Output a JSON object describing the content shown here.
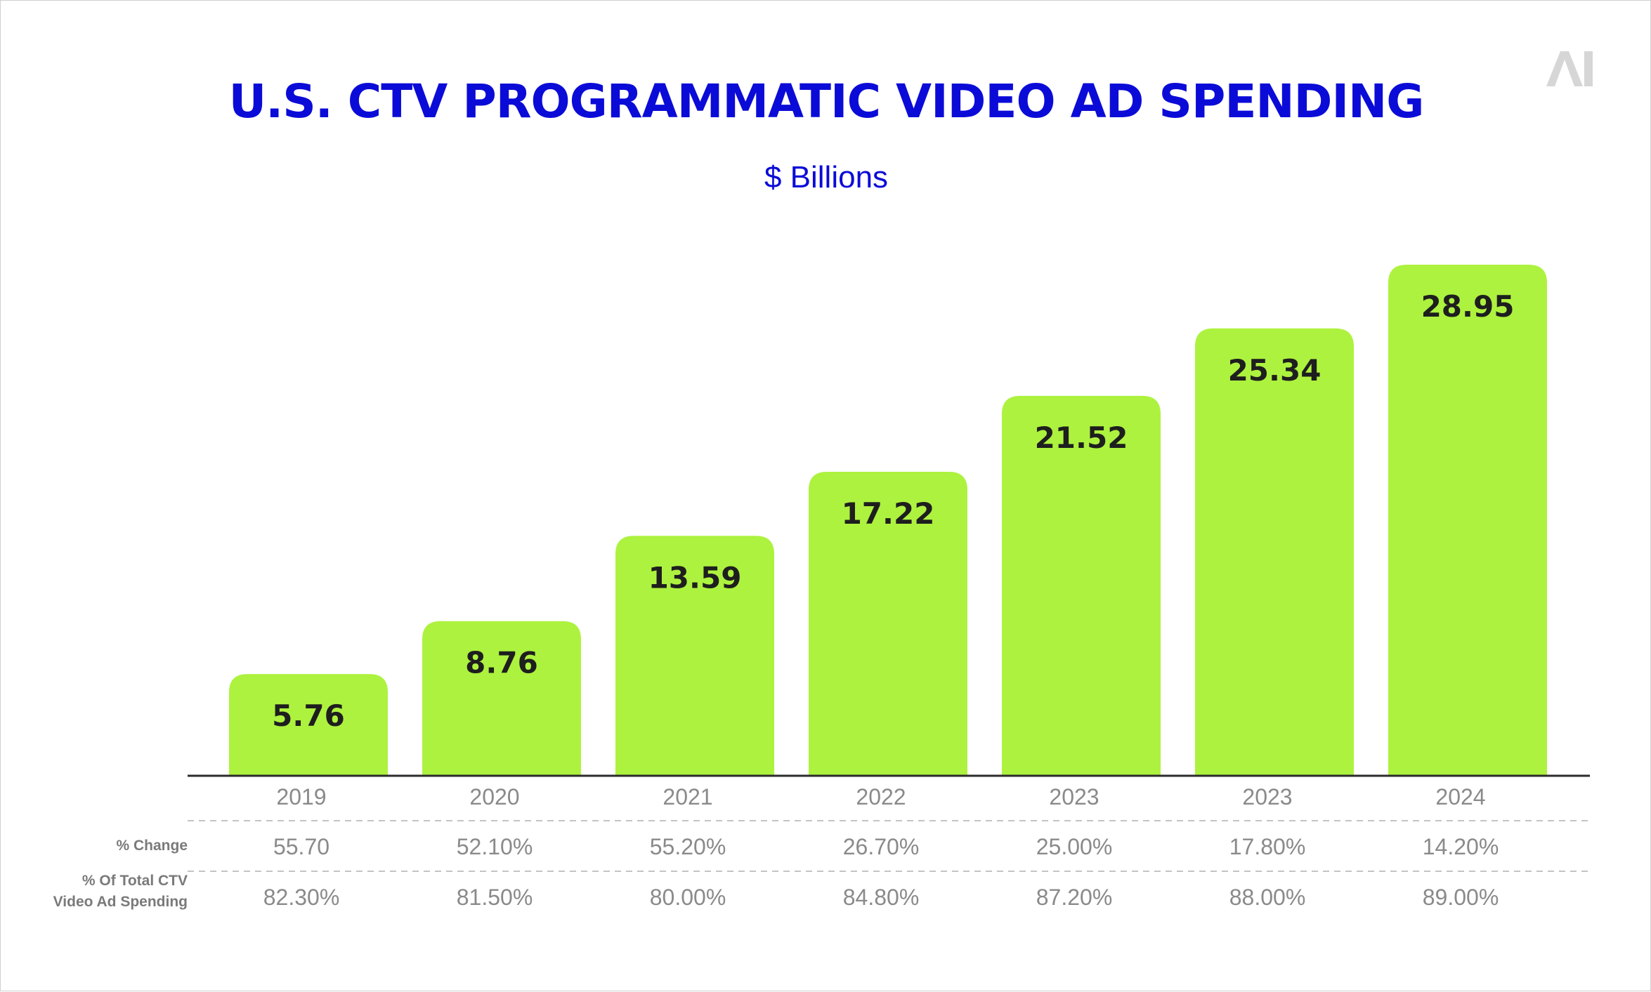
{
  "chart_data": {
    "type": "bar",
    "title": "U.S. CTV PROGRAMMATIC VIDEO AD SPENDING",
    "subtitle": "$ Billions",
    "xlabel": "",
    "ylabel": "",
    "ylim": [
      0,
      28.95
    ],
    "grid": false,
    "categories": [
      "2019",
      "2020",
      "2021",
      "2022",
      "2023",
      "2023",
      "2024"
    ],
    "values": [
      5.76,
      8.76,
      13.59,
      17.22,
      21.52,
      25.34,
      28.95
    ],
    "value_labels": [
      "5.76",
      "8.76",
      "13.59",
      "17.22",
      "21.52",
      "25.34",
      "28.95"
    ],
    "bar_color": "#adf23f",
    "title_color": "#0b0bd8",
    "table_rows": [
      {
        "header": [
          "% Change"
        ],
        "values": [
          "55.70",
          "52.10%",
          "55.20%",
          "26.70%",
          "25.00%",
          "17.80%",
          "14.20%"
        ]
      },
      {
        "header": [
          "% Of Total CTV",
          "Video Ad Spending"
        ],
        "values": [
          "82.30%",
          "81.50%",
          "80.00%",
          "84.80%",
          "87.20%",
          "88.00%",
          "89.00%"
        ]
      }
    ]
  },
  "logo": {
    "text": "AI",
    "icon": "ai-logo-icon",
    "color": "#d6d6d6"
  }
}
